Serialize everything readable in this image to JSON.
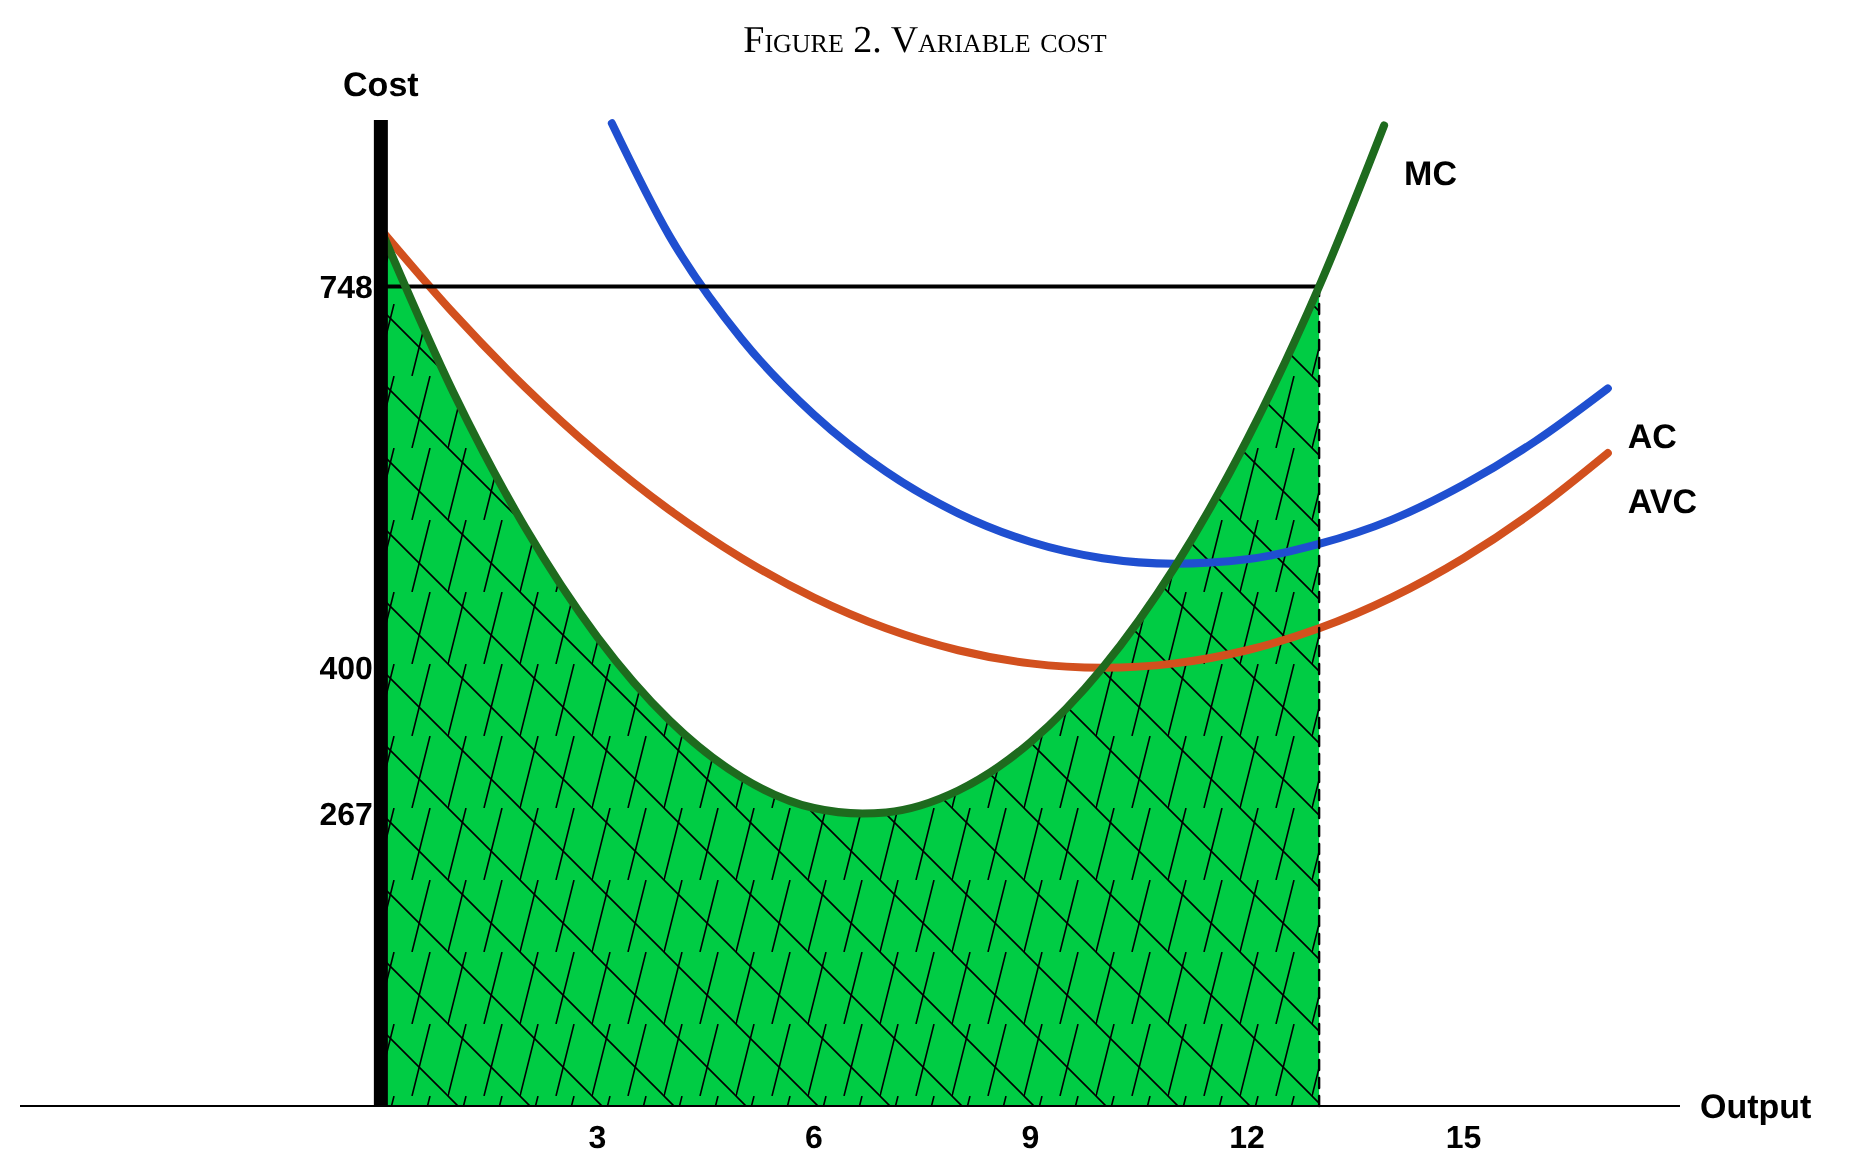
{
  "chart_data": {
    "type": "line",
    "title": "Figure 2. Variable cost",
    "xlabel": "Output",
    "ylabel": "Cost",
    "xlim": [
      -5,
      18
    ],
    "ylim": [
      0,
      900
    ],
    "xticks": [
      3,
      6,
      9,
      12,
      15
    ],
    "yticks": [
      267,
      400,
      748
    ],
    "grid": false,
    "series": [
      {
        "type": "area",
        "color": "#00cc44",
        "x": [
          0,
          1,
          2,
          3,
          4,
          5,
          6,
          6.67,
          7,
          8,
          9,
          10,
          11,
          12,
          13
        ],
        "values": [
          800,
          652,
          528,
          428,
          352,
          300,
          272,
          267,
          268,
          288,
          332,
          400,
          492,
          608,
          748
        ]
      },
      {
        "name": "AVC",
        "color": "#d2501e",
        "x": [
          0,
          1,
          2,
          3,
          4,
          5,
          6,
          7,
          8,
          9,
          10,
          11,
          12,
          13,
          14,
          15,
          16,
          17
        ],
        "values": [
          800,
          724,
          656,
          596,
          544,
          500,
          464,
          436,
          416,
          404,
          400,
          404,
          416,
          436,
          464,
          500,
          544,
          596
        ]
      },
      {
        "name": "AC",
        "color": "#1f4fd0",
        "x": [
          3.2,
          4,
          5,
          6,
          7,
          8,
          9,
          10,
          11,
          12,
          13,
          14,
          15,
          16,
          17
        ],
        "values": [
          897,
          794,
          700,
          631,
          579,
          541,
          515,
          500,
          495,
          499,
          513,
          535,
          567,
          607,
          655
        ]
      },
      {
        "color": "#000000",
        "x": [
          0,
          13
        ],
        "values": [
          748,
          748
        ]
      },
      {
        "color": "#000000",
        "x": [
          13,
          13
        ],
        "values": [
          0,
          748
        ],
        "line_style": "dashed"
      },
      {
        "name": "MC",
        "color": "#1e6b1e",
        "x": [
          0,
          1,
          2,
          3,
          4,
          5,
          6,
          6.67,
          7,
          8,
          9,
          10,
          11,
          12,
          13,
          13.9
        ],
        "values": [
          800,
          652,
          528,
          428,
          352,
          300,
          272,
          267,
          268,
          288,
          332,
          400,
          492,
          608,
          748,
          895
        ]
      }
    ]
  }
}
